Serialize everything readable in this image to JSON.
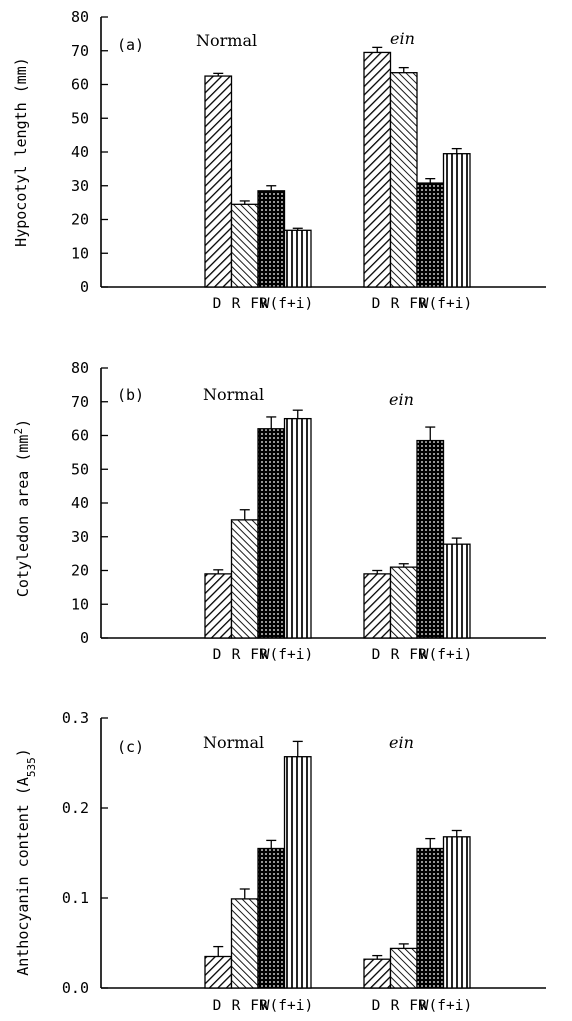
{
  "chart_data": [
    {
      "type": "bar",
      "panel_label": "(a)",
      "ylabel": "Hypocotyl length (mm)",
      "ylim": [
        0,
        80
      ],
      "yticks": [
        0,
        10,
        20,
        30,
        40,
        50,
        60,
        70,
        80
      ],
      "tick_decimals": 0,
      "categories": [
        "D",
        "R",
        "FR",
        "W(f+i)"
      ],
      "group_labels": [
        "Normal",
        "ein"
      ],
      "groups": [
        {
          "name": "Normal",
          "values": [
            62.5,
            24.5,
            28.5,
            16.8
          ],
          "errors": [
            0.8,
            1.0,
            1.5,
            0.6
          ]
        },
        {
          "name": "ein",
          "values": [
            69.5,
            63.5,
            30.8,
            39.5
          ],
          "errors": [
            1.5,
            1.5,
            1.3,
            1.5
          ]
        }
      ],
      "grid": false
    },
    {
      "type": "bar",
      "panel_label": "(b)",
      "ylabel": "Cotyledon area (mm²)",
      "ylim": [
        0,
        80
      ],
      "yticks": [
        0,
        10,
        20,
        30,
        40,
        50,
        60,
        70,
        80
      ],
      "tick_decimals": 0,
      "categories": [
        "D",
        "R",
        "FR",
        "W(f+i)"
      ],
      "group_labels": [
        "Normal",
        "ein"
      ],
      "groups": [
        {
          "name": "Normal",
          "values": [
            19.0,
            35.0,
            62.0,
            65.0
          ],
          "errors": [
            1.2,
            3.0,
            3.5,
            2.5
          ]
        },
        {
          "name": "ein",
          "values": [
            19.0,
            21.0,
            58.5,
            27.8
          ],
          "errors": [
            1.0,
            1.0,
            4.0,
            1.8
          ]
        }
      ],
      "grid": false
    },
    {
      "type": "bar",
      "panel_label": "(c)",
      "ylabel": "Anthocyanin content (A535)",
      "ylim": [
        0,
        0.3
      ],
      "yticks": [
        0.0,
        0.1,
        0.2,
        0.3
      ],
      "tick_decimals": 1,
      "categories": [
        "D",
        "R",
        "FR",
        "W(f+i)"
      ],
      "group_labels": [
        "Normal",
        "ein"
      ],
      "groups": [
        {
          "name": "Normal",
          "values": [
            0.035,
            0.099,
            0.155,
            0.257
          ],
          "errors": [
            0.011,
            0.011,
            0.009,
            0.017
          ]
        },
        {
          "name": "ein",
          "values": [
            0.032,
            0.044,
            0.155,
            0.168
          ],
          "errors": [
            0.004,
            0.005,
            0.011,
            0.007
          ]
        }
      ],
      "grid": false
    }
  ],
  "patterns": [
    "diagonal-right",
    "diagonal-left",
    "dense-dots",
    "vertical-lines"
  ],
  "colors": {
    "ink": "#000000",
    "background": "#ffffff"
  }
}
